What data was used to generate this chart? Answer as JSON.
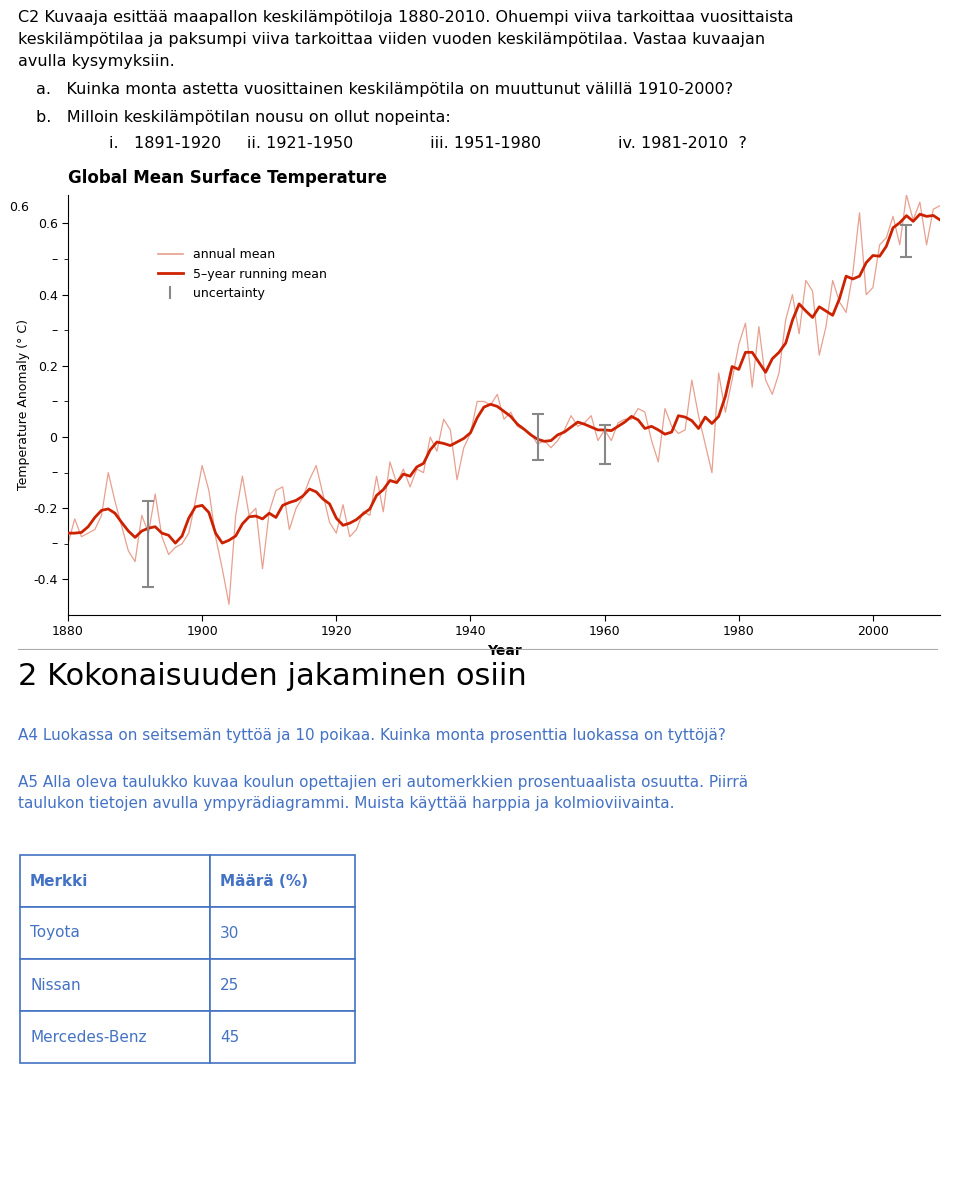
{
  "chart_title": "Global Mean Surface Temperature",
  "chart_ylabel": "Temperature Anomaly (° C)",
  "chart_xlabel": "Year",
  "section2_title": "2 Kokonaisuuden jakaminen osiin",
  "a4_text": "A4 Luokassa on seitsemän tyttöä ja 10 poikaa. Kuinka monta prosenttia luokassa on tyttöjä?",
  "a5_line1": "A5 Alla oleva taulukko kuvaa koulun opettajien eri automerkkien prosentuaalista osuutta. Piirrä",
  "a5_line2": "taulukon tietojen avulla ympyrädiagrammi. Muista käyttää harppia ja kolmioviivainta.",
  "table_headers": [
    "Merkki",
    "Määrä (%)"
  ],
  "table_rows": [
    [
      "Toyota",
      "30"
    ],
    [
      "Nissan",
      "25"
    ],
    [
      "Mercedes-Benz",
      "45"
    ]
  ],
  "text_color": "#000000",
  "blue_color": "#4472c4",
  "table_border_color": "#4472c4",
  "chart_annual_color": "#e8a090",
  "chart_running_color": "#cc2200",
  "chart_uncertainty_color": "#888888",
  "bg_color": "#ffffff",
  "intro_line1": "C2 Kuvaaja esittää maapallon keskilämpötiloja 1880-2010. Ohuempi viiva tarkoittaa vuosittaista",
  "intro_line2": "keskilämpötilaa ja paksumpi viiva tarkoittaa viiden vuoden keskilämpötilaa. Vastaa kuvaajan",
  "intro_line3": "avulla kysymyksiin.",
  "qa_a": "a.   Kuinka monta astetta vuosittainen keskilämpötila on muuttunut välillä 1910-2000?",
  "qa_b": "b.   Milloin keskilämpötilan nousu on ollut nopeinta:",
  "qa_b2": "        i.   1891-1920     ii. 1921-1950               iii. 1951-1980               iv. 1981-2010  ?"
}
